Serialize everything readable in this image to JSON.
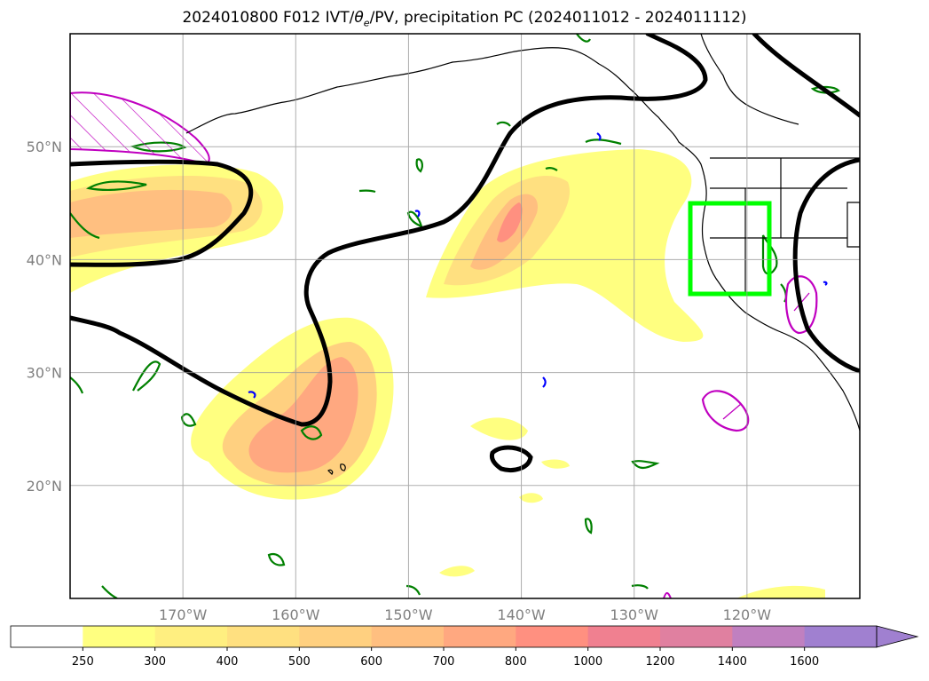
{
  "title": {
    "prefix": "2024010800 F012 IVT/",
    "theta": "θ",
    "subscript": "e",
    "suffix": "/PV, precipitation PC (2024011012 - 2024011112)"
  },
  "map": {
    "lon_range": [
      -180,
      -110
    ],
    "lat_range": [
      10,
      60
    ],
    "lon_ticks": [
      {
        "value": -170,
        "label": "170°W"
      },
      {
        "value": -160,
        "label": "160°W"
      },
      {
        "value": -150,
        "label": "150°W"
      },
      {
        "value": -140,
        "label": "140°W"
      },
      {
        "value": -130,
        "label": "130°W"
      },
      {
        "value": -120,
        "label": "120°W"
      }
    ],
    "lat_ticks": [
      {
        "value": 50,
        "label": "50°N"
      },
      {
        "value": 40,
        "label": "40°N"
      },
      {
        "value": 30,
        "label": "30°N"
      },
      {
        "value": 20,
        "label": "20°N"
      }
    ],
    "gridlines": true,
    "highlight_box": {
      "lon": [
        -125,
        -118
      ],
      "lat": [
        37,
        45
      ],
      "color": "#00ff00"
    }
  },
  "colorbar": {
    "levels": [
      "250",
      "300",
      "400",
      "500",
      "600",
      "700",
      "800",
      "1000",
      "1200",
      "1400",
      "1600"
    ],
    "colors": [
      "#ffffff",
      "#ffff80",
      "#ffef80",
      "#ffe080",
      "#ffd080",
      "#ffbf80",
      "#ffa880",
      "#ff9080",
      "#f08090",
      "#e080a0",
      "#c080c0",
      "#a080d0"
    ],
    "extend": "max"
  },
  "colors": {
    "pv_contour": "#008000",
    "pv_negative": "#0000ff",
    "theta_contour": "#000000",
    "precip_pc": "#c000c0",
    "coastline": "#000000"
  }
}
